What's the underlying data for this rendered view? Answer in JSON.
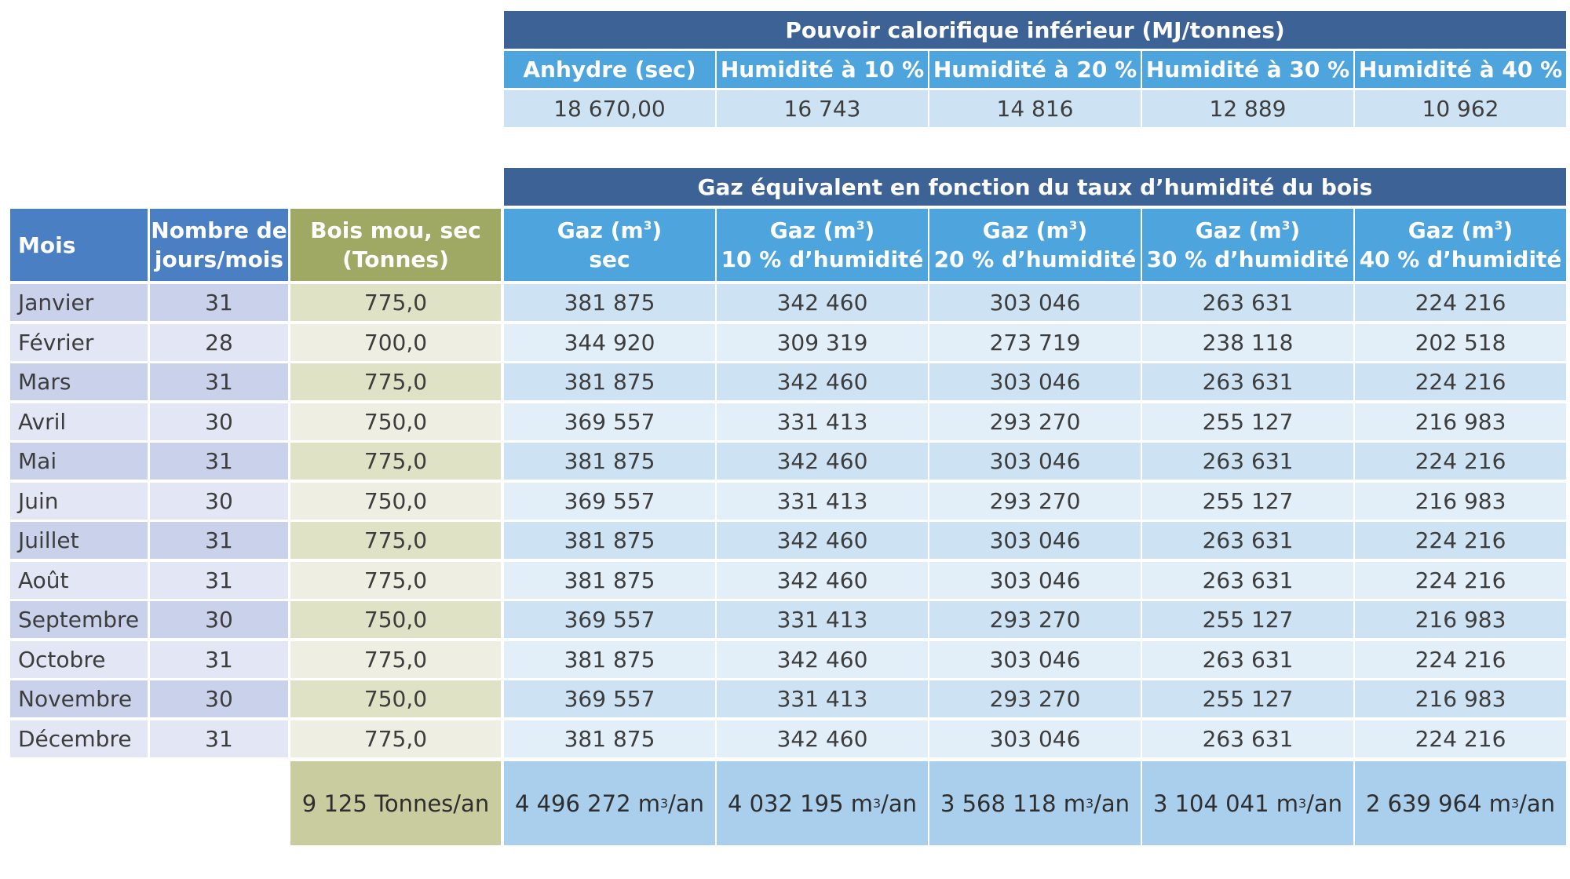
{
  "pci": {
    "title": "Pouvoir calorifique inférieur (MJ/tonnes)",
    "columns": [
      "Anhydre (sec)",
      "Humidité à 10 %",
      "Humidité à 20 %",
      "Humidité à 30 %",
      "Humidité à 40 %"
    ],
    "values": [
      "18 670,00",
      "16 743",
      "14 816",
      "12 889",
      "10 962"
    ]
  },
  "gas_table": {
    "group_title": "Gaz équivalent en fonction du taux d’humidité du bois",
    "headers": {
      "mois": "Mois",
      "jours": [
        "Nombre de",
        "jours/mois"
      ],
      "bois": [
        "Bois mou, sec",
        "(Tonnes)"
      ],
      "gaz": [
        {
          "line1": "Gaz (m",
          "sup": "3",
          "line1_end": ")",
          "line2": "sec"
        },
        {
          "line1": "Gaz (m",
          "sup": "3",
          "line1_end": ")",
          "line2": "10 % d’humidité"
        },
        {
          "line1": "Gaz (m",
          "sup": "3",
          "line1_end": ")",
          "line2": "20 % d’humidité"
        },
        {
          "line1": "Gaz (m",
          "sup": "3",
          "line1_end": ")",
          "line2": "30 % d’humidité"
        },
        {
          "line1": "Gaz (m",
          "sup": "3",
          "line1_end": ")",
          "line2": "40 % d’humidité"
        }
      ]
    },
    "rows": [
      [
        "Janvier",
        "31",
        "775,0",
        "381 875",
        "342 460",
        "303 046",
        "263 631",
        "224 216"
      ],
      [
        "Février",
        "28",
        "700,0",
        "344 920",
        "309 319",
        "273 719",
        "238 118",
        "202 518"
      ],
      [
        "Mars",
        "31",
        "775,0",
        "381 875",
        "342 460",
        "303 046",
        "263 631",
        "224 216"
      ],
      [
        "Avril",
        "30",
        "750,0",
        "369 557",
        "331 413",
        "293 270",
        "255 127",
        "216 983"
      ],
      [
        "Mai",
        "31",
        "775,0",
        "381 875",
        "342 460",
        "303 046",
        "263 631",
        "224 216"
      ],
      [
        "Juin",
        "30",
        "750,0",
        "369 557",
        "331 413",
        "293 270",
        "255 127",
        "216 983"
      ],
      [
        "Juillet",
        "31",
        "775,0",
        "381 875",
        "342 460",
        "303 046",
        "263 631",
        "224 216"
      ],
      [
        "Août",
        "31",
        "775,0",
        "381 875",
        "342 460",
        "303 046",
        "263 631",
        "224 216"
      ],
      [
        "Septembre",
        "30",
        "750,0",
        "369 557",
        "331 413",
        "293 270",
        "255 127",
        "216 983"
      ],
      [
        "Octobre",
        "31",
        "775,0",
        "381 875",
        "342 460",
        "303 046",
        "263 631",
        "224 216"
      ],
      [
        "Novembre",
        "30",
        "750,0",
        "369 557",
        "331 413",
        "293 270",
        "255 127",
        "216 983"
      ],
      [
        "Décembre",
        "31",
        "775,0",
        "381 875",
        "342 460",
        "303 046",
        "263 631",
        "224 216"
      ]
    ],
    "totals": {
      "bois": "9 125 Tonnes/an",
      "gaz": [
        {
          "value": "4 496 272 m",
          "sup": "3",
          "unit": "/an"
        },
        {
          "value": "4 032 195 m",
          "sup": "3",
          "unit": "/an"
        },
        {
          "value": "3 568 118 m",
          "sup": "3",
          "unit": "/an"
        },
        {
          "value": "3 104 041 m",
          "sup": "3",
          "unit": "/an"
        },
        {
          "value": "2 639 964 m",
          "sup": "3",
          "unit": "/an"
        }
      ]
    }
  },
  "colors": {
    "header_dark": "#3c6296",
    "header_blue": "#4ea4dc",
    "header_mois": "#4a7fc4",
    "header_olive": "#9fa964",
    "month_odd": "#c9d2ea",
    "month_even": "#e3e7f5",
    "bois_odd": "#e0e2c6",
    "bois_even": "#eeefe2",
    "gas_odd": "#cde2f2",
    "gas_even": "#e2eef8",
    "total_olive": "#c8cc9e",
    "total_blue": "#a9cfec"
  }
}
